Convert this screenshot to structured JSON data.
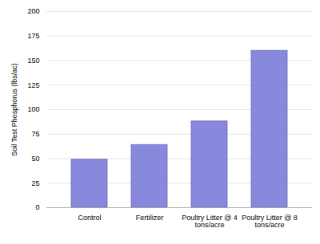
{
  "chart_data": {
    "type": "bar",
    "categories": [
      "Control",
      "Fertilizer",
      "Poultry Litter @ 4\ntons/acre",
      "Poultry Litter @ 8\ntons/acre"
    ],
    "values": [
      49,
      64,
      88,
      160
    ],
    "color": "#8888dd",
    "ylabel": "Soil Test Phosphorus (lbs/ac)",
    "ylim": [
      0,
      200
    ],
    "yticks": [
      0,
      25,
      50,
      75,
      100,
      125,
      150,
      175,
      200
    ],
    "grid": true
  }
}
